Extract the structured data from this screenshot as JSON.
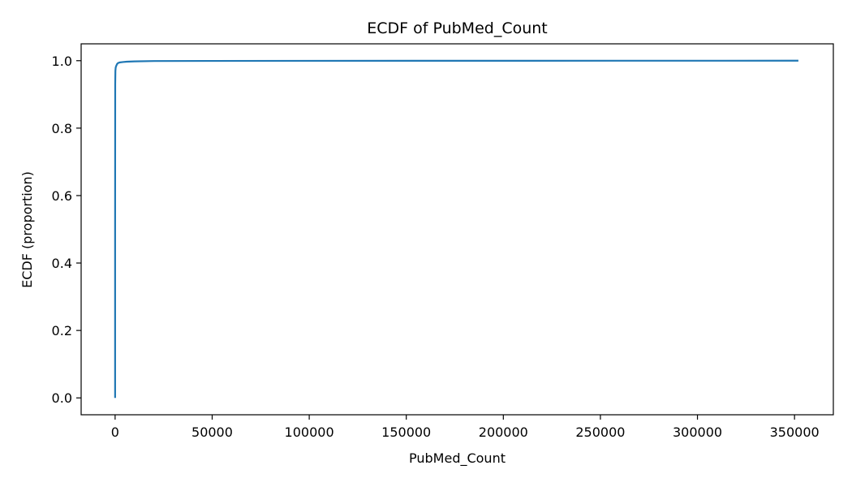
{
  "chart_data": {
    "type": "line",
    "title": "ECDF of PubMed_Count",
    "xlabel": "PubMed_Count",
    "ylabel": "ECDF (proportion)",
    "xlim": [
      -17500,
      370000
    ],
    "ylim": [
      -0.05,
      1.05
    ],
    "x_ticks": [
      0,
      50000,
      100000,
      150000,
      200000,
      250000,
      300000,
      350000
    ],
    "x_tick_labels": [
      "0",
      "50000",
      "100000",
      "150000",
      "200000",
      "250000",
      "300000",
      "350000"
    ],
    "y_ticks": [
      0.0,
      0.2,
      0.4,
      0.6,
      0.8,
      1.0
    ],
    "y_tick_labels": [
      "0.0",
      "0.2",
      "0.4",
      "0.6",
      "0.8",
      "1.0"
    ],
    "grid": false,
    "line_color": "#1f77b4",
    "series": [
      {
        "x": [
          0,
          0,
          50,
          150,
          300,
          600,
          1000,
          1500,
          2500,
          4000,
          6000,
          10000,
          20000,
          50000,
          100000,
          200000,
          300000,
          352000
        ],
        "y": [
          0.0,
          0.5,
          0.93,
          0.97,
          0.98,
          0.985,
          0.99,
          0.993,
          0.995,
          0.996,
          0.997,
          0.998,
          0.999,
          0.9993,
          0.9996,
          0.9998,
          0.9999,
          1.0
        ]
      }
    ]
  }
}
